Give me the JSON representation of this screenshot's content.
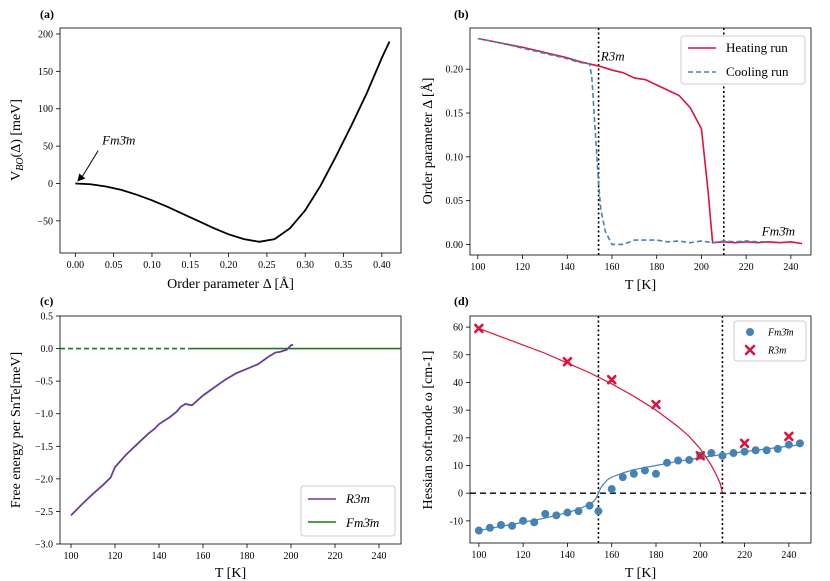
{
  "chart_data": [
    {
      "panel": "(a)",
      "type": "line",
      "xlabel": "Order parameter Δ [Å]",
      "ylabel": "V_BO(Δ) [meV]",
      "xlim": [
        -0.02,
        0.425
      ],
      "ylim": [
        -93,
        208
      ],
      "xticks": [
        0.0,
        0.05,
        0.1,
        0.15,
        0.2,
        0.25,
        0.3,
        0.35,
        0.4
      ],
      "xtick_labels": [
        "0.00",
        "0.05",
        "0.10",
        "0.15",
        "0.20",
        "0.25",
        "0.30",
        "0.35",
        "0.40"
      ],
      "yticks": [
        -50,
        0,
        50,
        100,
        150,
        200
      ],
      "ytick_labels": [
        "−50",
        "0",
        "50",
        "100",
        "150",
        "200"
      ],
      "series": [
        {
          "name": "V_BO",
          "color": "#000000",
          "x": [
            0.0,
            0.02,
            0.04,
            0.06,
            0.08,
            0.1,
            0.12,
            0.14,
            0.16,
            0.18,
            0.2,
            0.22,
            0.24,
            0.26,
            0.28,
            0.3,
            0.32,
            0.34,
            0.36,
            0.38,
            0.4,
            0.41
          ],
          "y": [
            0,
            -1,
            -4,
            -8.5,
            -15,
            -22.5,
            -31,
            -40.5,
            -50,
            -59.5,
            -68,
            -74.5,
            -78,
            -74.5,
            -60,
            -36,
            -3,
            36,
            77,
            120,
            168,
            190
          ]
        }
      ],
      "annotation": {
        "text": "Fm3̄m",
        "x": 0.0,
        "y": 0,
        "text_x": 0.035,
        "text_y": 52
      }
    },
    {
      "panel": "(b)",
      "type": "line",
      "xlabel": "T [K]",
      "ylabel": "Order parameter Δ [Å]",
      "xlim": [
        96.5,
        249
      ],
      "ylim": [
        -0.012,
        0.247
      ],
      "xticks": [
        100,
        120,
        140,
        160,
        180,
        200,
        220,
        240
      ],
      "yticks": [
        0.0,
        0.05,
        0.1,
        0.15,
        0.2
      ],
      "ytick_labels": [
        "0.00",
        "0.05",
        "0.10",
        "0.15",
        "0.20"
      ],
      "vlines": [
        154,
        210
      ],
      "series": [
        {
          "name": "Heating run",
          "color": "#dc143c",
          "style": "solid",
          "x": [
            100,
            110,
            120,
            130,
            140,
            145,
            150,
            155,
            160,
            165,
            170,
            175,
            180,
            185,
            190,
            195,
            200,
            203,
            205,
            210,
            215,
            220,
            225,
            230,
            235,
            240,
            245
          ],
          "y": [
            0.235,
            0.23,
            0.225,
            0.219,
            0.213,
            0.209,
            0.206,
            0.203,
            0.199,
            0.196,
            0.19,
            0.188,
            0.182,
            0.176,
            0.17,
            0.156,
            0.132,
            0.06,
            0.002,
            0.003,
            0.002,
            0.003,
            0.002,
            0.003,
            0.002,
            0.003,
            0.001
          ]
        },
        {
          "name": "Cooling run",
          "color": "#4682b4",
          "style": "dashed",
          "x": [
            100,
            110,
            120,
            130,
            140,
            145,
            150,
            151,
            152,
            153,
            154,
            155,
            157,
            160,
            165,
            170,
            175,
            180,
            185,
            190,
            195,
            200,
            205,
            210,
            215,
            220,
            225,
            230
          ],
          "y": [
            0.235,
            0.23,
            0.224,
            0.218,
            0.212,
            0.208,
            0.206,
            0.19,
            0.15,
            0.11,
            0.07,
            0.04,
            0.015,
            0.0,
            0.0,
            0.005,
            0.005,
            0.005,
            0.003,
            0.004,
            0.002,
            0.004,
            0.002,
            0.004,
            0.003,
            0.004,
            0.003,
            0.003
          ]
        }
      ],
      "annotations": [
        {
          "text": "R3m",
          "x": 155,
          "y": 0.21
        },
        {
          "text": "Fm3̄m",
          "x": 227,
          "y": 0.01
        }
      ],
      "legend": "top-right"
    },
    {
      "panel": "(c)",
      "type": "line",
      "xlabel": "T [K]",
      "ylabel": "Free energy per SnTe[meV]",
      "xlim": [
        95,
        250
      ],
      "ylim": [
        -3.0,
        0.5
      ],
      "xticks": [
        100,
        120,
        140,
        160,
        180,
        200,
        220,
        240
      ],
      "yticks": [
        -3.0,
        -2.5,
        -2.0,
        -1.5,
        -1.0,
        -0.5,
        0.0,
        0.5
      ],
      "ytick_labels": [
        "−3.0",
        "−2.5",
        "−2.0",
        "−1.5",
        "−1.0",
        "−0.5",
        "0.0",
        "0.5"
      ],
      "series": [
        {
          "name": "R3m",
          "color": "#6a3d9a",
          "style": "solid",
          "x": [
            100,
            105,
            110,
            115,
            118,
            120,
            125,
            130,
            135,
            138,
            140,
            145,
            148,
            150,
            152,
            155,
            160,
            165,
            170,
            175,
            180,
            185,
            190,
            193,
            195,
            198,
            200,
            201
          ],
          "y": [
            -2.56,
            -2.39,
            -2.23,
            -2.08,
            -1.98,
            -1.82,
            -1.63,
            -1.47,
            -1.31,
            -1.23,
            -1.16,
            -1.05,
            -0.97,
            -0.89,
            -0.85,
            -0.87,
            -0.72,
            -0.6,
            -0.48,
            -0.38,
            -0.31,
            -0.24,
            -0.12,
            -0.06,
            -0.05,
            -0.02,
            0.05,
            0.06
          ]
        },
        {
          "name": "Fm3̄m",
          "color": "#1a7a1a",
          "style": "dashed-then-solid",
          "switch_x": 154,
          "x": [
            95,
            250
          ],
          "y": [
            0.0,
            0.0
          ]
        }
      ],
      "legend": "bottom-right"
    },
    {
      "panel": "(d)",
      "type": "scatter",
      "xlabel": "T [K]",
      "ylabel": "Hessian soft-mode ω [cm-1]",
      "xlim": [
        96,
        250
      ],
      "ylim": [
        -18,
        64
      ],
      "xticks": [
        100,
        120,
        140,
        160,
        180,
        200,
        220,
        240
      ],
      "yticks": [
        -10,
        0,
        10,
        20,
        30,
        40,
        50,
        60
      ],
      "hline": 0,
      "vlines": [
        154,
        210
      ],
      "series": [
        {
          "name": "Fm3̄m",
          "color": "#4682b4",
          "marker": "circle",
          "x": [
            100,
            105,
            110,
            115,
            120,
            125,
            130,
            135,
            140,
            145,
            150,
            154,
            160,
            165,
            170,
            175,
            180,
            185,
            190,
            195,
            200,
            205,
            210,
            215,
            220,
            225,
            230,
            235,
            240,
            245
          ],
          "y": [
            -13.5,
            -12.5,
            -11.5,
            -11.8,
            -10,
            -10.5,
            -7.5,
            -8,
            -7,
            -6.5,
            -4.5,
            -6.5,
            1.5,
            5.8,
            7,
            8.2,
            7,
            11,
            11.8,
            12,
            13.5,
            14.5,
            13.5,
            14.5,
            15,
            15.5,
            15.5,
            16,
            17.5,
            18
          ]
        },
        {
          "name": "R3m",
          "color": "#dc143c",
          "marker": "x",
          "x": [
            100,
            140,
            160,
            180,
            200,
            220,
            240
          ],
          "y": [
            59.5,
            47.5,
            41,
            32,
            13.5,
            18,
            20.5
          ]
        },
        {
          "name": "fit-Fm3̄m",
          "color": "#4682b4",
          "style": "line",
          "x": [
            100,
            110,
            120,
            130,
            140,
            145,
            150,
            152,
            153,
            154,
            155,
            156,
            158,
            160,
            165,
            170,
            180,
            190,
            200,
            210,
            220,
            230,
            240,
            245
          ],
          "y": [
            -13.5,
            -12,
            -10.5,
            -9,
            -7,
            -5.8,
            -4,
            -2.8,
            -1.8,
            0,
            1.8,
            3,
            4.8,
            5.8,
            7.3,
            8.5,
            10,
            11.5,
            12.8,
            14,
            15,
            16,
            17,
            17.5
          ]
        },
        {
          "name": "fit-R3m",
          "color": "#dc143c",
          "style": "line",
          "x": [
            100,
            110,
            120,
            130,
            140,
            150,
            160,
            170,
            180,
            190,
            195,
            200,
            203,
            205,
            207,
            209,
            210
          ],
          "y": [
            59.5,
            56.5,
            53.5,
            50.5,
            47,
            43.5,
            39.5,
            35,
            30,
            24,
            20.5,
            16,
            12.5,
            10,
            7,
            3.5,
            0
          ]
        }
      ],
      "legend": "top-right"
    }
  ]
}
